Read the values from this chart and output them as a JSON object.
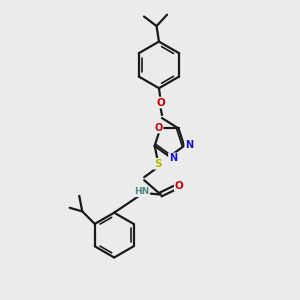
{
  "bg_color": "#ebebeb",
  "bond_color": "#1a1a1a",
  "N_color": "#1414cc",
  "O_color": "#cc0000",
  "S_color": "#b8b800",
  "H_color": "#4a8888",
  "line_width": 1.6,
  "figsize": [
    3.0,
    3.0
  ],
  "dpi": 100,
  "xlim": [
    0,
    10
  ],
  "ylim": [
    0,
    10
  ]
}
